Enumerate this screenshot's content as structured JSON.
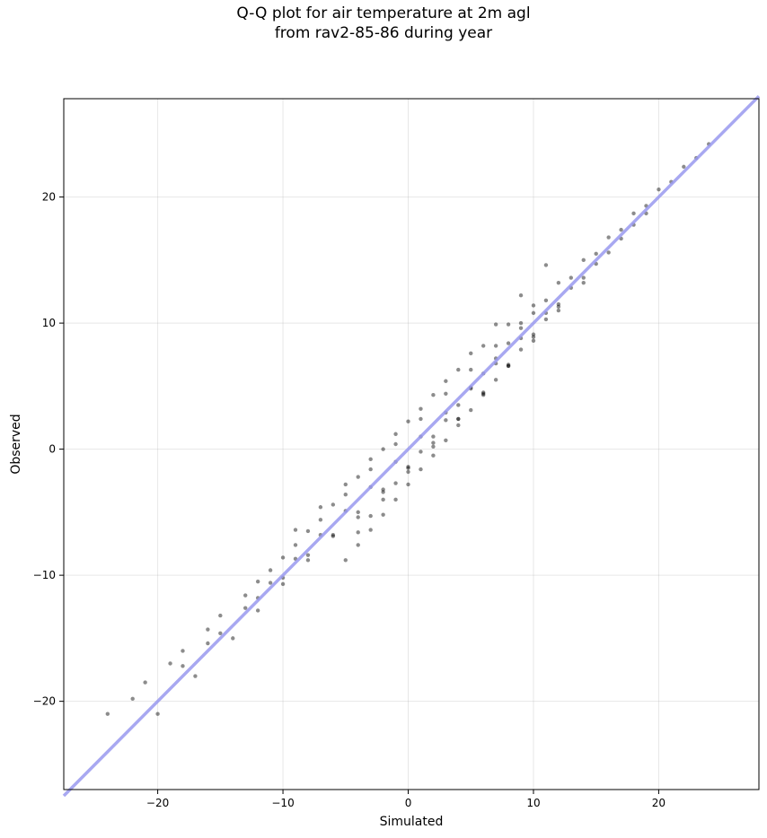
{
  "chart_data": {
    "type": "scatter",
    "title_line1": "Q-Q plot for air temperature at 2m agl",
    "title_line2": "from rav2-85-86 during year",
    "xlabel": "Simulated",
    "ylabel": "Observed",
    "xlim": [
      -27.5,
      28
    ],
    "ylim": [
      -27,
      27.8
    ],
    "xticks": [
      -20,
      -10,
      0,
      10,
      20
    ],
    "yticks": [
      -20,
      -10,
      0,
      10,
      20
    ],
    "xtick_labels": [
      "−20",
      "−10",
      "0",
      "10",
      "20"
    ],
    "ytick_labels": [
      "−20",
      "−10",
      "0",
      "10",
      "20"
    ],
    "grid": true,
    "reference_line": {
      "from": [
        -27.5,
        -27.5
      ],
      "to": [
        28,
        28
      ],
      "color": "#9999ee"
    },
    "point_color": "#000000",
    "series": [
      {
        "x": [
          -24,
          -21,
          -18,
          -15,
          -12,
          -10,
          -8,
          -6,
          -4,
          -2,
          0,
          2,
          4,
          6,
          8,
          10,
          12,
          14,
          16,
          18,
          20,
          22,
          24
        ],
        "y": [
          -21,
          -18.5,
          -16,
          -13.2,
          -10.5,
          -8.6,
          -6.5,
          -4.4,
          -2.2,
          0,
          2.2,
          4.3,
          6.3,
          8.2,
          9.9,
          11.4,
          13.2,
          15,
          16.8,
          18.7,
          20.6,
          22.4,
          24.2
        ]
      },
      {
        "x": [
          -22,
          -19,
          -16,
          -13,
          -11,
          -9,
          -7,
          -5,
          -3,
          -1,
          1,
          3,
          5,
          7,
          9,
          11,
          13,
          15,
          17,
          19,
          21,
          23
        ],
        "y": [
          -19.8,
          -17,
          -14.3,
          -11.6,
          -9.6,
          -7.6,
          -5.6,
          -3.6,
          -1.6,
          0.4,
          2.4,
          4.4,
          6.3,
          8.2,
          10,
          11.8,
          13.6,
          15.5,
          17.4,
          19.3,
          21.2,
          23.1
        ]
      },
      {
        "x": [
          -20,
          -17,
          -14,
          -12,
          -10,
          -8,
          -6,
          -4,
          -2,
          0,
          2,
          4,
          6,
          8,
          10,
          12,
          14,
          16,
          18
        ],
        "y": [
          -21,
          -18,
          -15,
          -12.8,
          -10.7,
          -8.8,
          -6.9,
          -5,
          -3.2,
          -1.4,
          0.5,
          2.4,
          4.5,
          6.6,
          8.9,
          11.3,
          13.6,
          15.6,
          17.8
        ]
      },
      {
        "x": [
          -18,
          -15,
          -12,
          -10,
          -8,
          -6,
          -4,
          -2,
          0,
          2,
          4,
          6,
          8,
          10,
          12,
          14
        ],
        "y": [
          -17.2,
          -14.6,
          -11.8,
          -10.2,
          -8.4,
          -6.8,
          -5.4,
          -3.4,
          -1.8,
          0.2,
          2.4,
          4.4,
          6.6,
          8.6,
          11,
          13.2
        ]
      },
      {
        "x": [
          -16,
          -13,
          -11,
          -9,
          -7,
          -5,
          -3,
          -1,
          1,
          3,
          5,
          7,
          9,
          11,
          13,
          15,
          17,
          19
        ],
        "y": [
          -15.4,
          -12.6,
          -10.6,
          -8.7,
          -6.8,
          -4.9,
          -3,
          -1,
          1,
          2.9,
          4.9,
          6.8,
          8.8,
          10.8,
          12.8,
          14.7,
          16.7,
          18.7
        ]
      },
      {
        "x": [
          -5,
          -4,
          -3,
          -2,
          -1,
          0,
          1,
          2,
          3,
          4,
          5,
          6,
          7,
          8,
          9,
          10,
          11,
          12
        ],
        "y": [
          -8.8,
          -7.6,
          -6.4,
          -5.2,
          -4,
          -2.8,
          -1.6,
          -0.5,
          0.7,
          1.9,
          3.1,
          4.3,
          5.5,
          6.7,
          7.9,
          9.1,
          10.3,
          11.5
        ]
      },
      {
        "x": [
          -4,
          -3,
          -2,
          -1,
          0,
          1,
          2,
          3,
          4,
          5,
          6,
          7,
          8,
          9,
          10
        ],
        "y": [
          -6.6,
          -5.3,
          -4,
          -2.7,
          -1.5,
          -0.2,
          1,
          2.3,
          3.5,
          4.8,
          6,
          7.2,
          8.4,
          9.6,
          10.8
        ]
      },
      {
        "x": [
          -9,
          -7,
          -5,
          -3,
          -1,
          1,
          3,
          5,
          7,
          9,
          11
        ],
        "y": [
          -6.4,
          -4.6,
          -2.8,
          -0.8,
          1.2,
          3.2,
          5.4,
          7.6,
          9.9,
          12.2,
          14.6
        ]
      }
    ]
  }
}
